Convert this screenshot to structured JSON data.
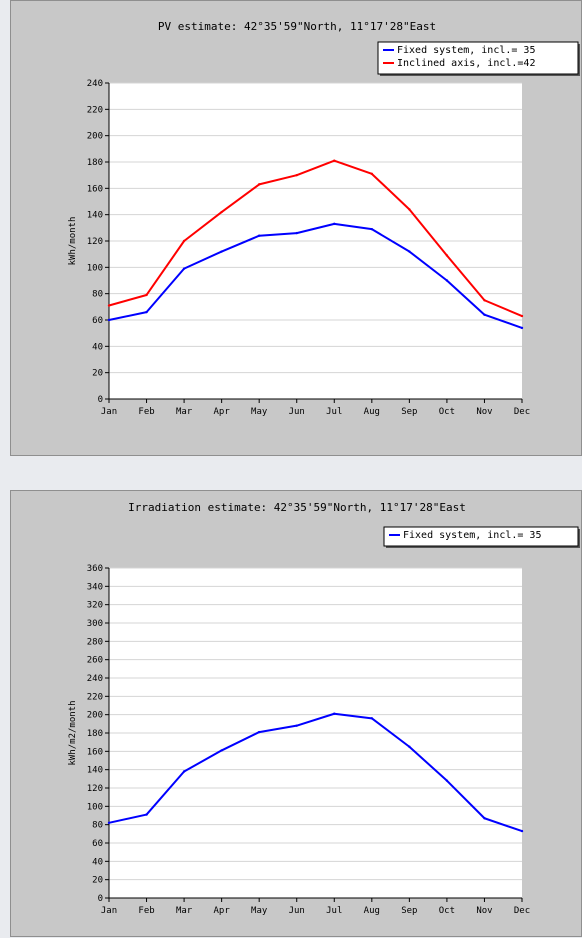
{
  "chart_data": [
    {
      "type": "line",
      "title": "PV estimate:  42°35'59\"North, 11°17'28\"East",
      "ylabel": "kWh/month",
      "xlabel": "",
      "categories": [
        "Jan",
        "Feb",
        "Mar",
        "Apr",
        "May",
        "Jun",
        "Jul",
        "Aug",
        "Sep",
        "Oct",
        "Nov",
        "Dec"
      ],
      "ylim": [
        0,
        240
      ],
      "yticks": [
        0,
        20,
        40,
        60,
        80,
        100,
        120,
        140,
        160,
        180,
        200,
        220,
        240
      ],
      "grid": true,
      "legend_position": "top-right",
      "series": [
        {
          "name": "Fixed system, incl.=  35",
          "color": "#0000ff",
          "values": [
            60,
            66,
            99,
            112,
            124,
            126,
            133,
            129,
            112,
            90,
            64,
            54
          ]
        },
        {
          "name": "Inclined axis, incl.=42",
          "color": "#ff0000",
          "values": [
            71,
            79,
            120,
            142,
            163,
            170,
            181,
            171,
            144,
            109,
            75,
            63
          ]
        }
      ]
    },
    {
      "type": "line",
      "title": "Irradiation estimate:  42°35'59\"North, 11°17'28\"East",
      "ylabel": "kWh/m2/month",
      "xlabel": "",
      "categories": [
        "Jan",
        "Feb",
        "Mar",
        "Apr",
        "May",
        "Jun",
        "Jul",
        "Aug",
        "Sep",
        "Oct",
        "Nov",
        "Dec"
      ],
      "ylim": [
        0,
        360
      ],
      "yticks": [
        0,
        20,
        40,
        60,
        80,
        100,
        120,
        140,
        160,
        180,
        200,
        220,
        240,
        260,
        280,
        300,
        320,
        340,
        360
      ],
      "grid": true,
      "legend_position": "top-right",
      "series": [
        {
          "name": "Fixed system, incl.= 35",
          "color": "#0000ff",
          "values": [
            82,
            91,
            138,
            161,
            181,
            188,
            201,
            196,
            165,
            128,
            87,
            73
          ]
        }
      ]
    }
  ]
}
